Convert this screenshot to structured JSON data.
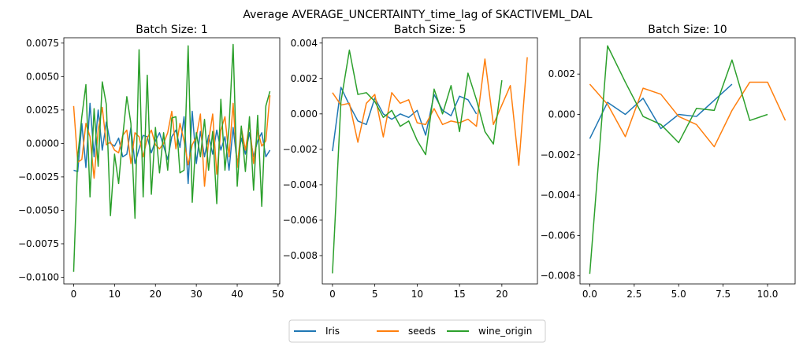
{
  "title": "Average AVERAGE_UNCERTAINTY_time_lag of SKACTIVEML_DAL",
  "legend_entries": [
    "Iris",
    "seeds",
    "wine_origin"
  ],
  "colors": {
    "Iris": "#1f77b4",
    "seeds": "#ff7f0e",
    "wine_origin": "#2ca02c"
  },
  "chart_data": [
    {
      "type": "line",
      "title": "Batch Size: 1",
      "xlim": [
        -2.4,
        50.4
      ],
      "ylim": [
        -0.0105,
        0.0079
      ],
      "xticks": [
        0,
        10,
        20,
        30,
        40,
        50
      ],
      "yticks": [
        -0.01,
        -0.0075,
        -0.005,
        -0.0025,
        0.0,
        0.0025,
        0.005,
        0.0075
      ],
      "ytick_labels": [
        "−0.0100",
        "−0.0075",
        "−0.0050",
        "−0.0025",
        "0.0000",
        "0.0025",
        "0.0050",
        "0.0075"
      ],
      "xtick_labels": [
        "0",
        "10",
        "20",
        "30",
        "40",
        "50"
      ],
      "series": [
        {
          "name": "Iris",
          "values": [
            -0.002,
            -0.0021,
            0.0015,
            -0.0018,
            0.003,
            -0.001,
            0.0025,
            -0.0005,
            0.0016,
            0.0,
            -0.0002,
            0.0004,
            -0.001,
            -0.0008,
            0.0012,
            -0.0015,
            -0.0004,
            0.0006,
            0.0005,
            -0.0007,
            0.0002,
            0.0008,
            -0.0002,
            -0.0012,
            0.0005,
            0.001,
            -0.0003,
            0.002,
            -0.003,
            0.0024,
            -0.0015,
            0.0009,
            -0.001,
            0.0006,
            -0.0008,
            0.001,
            -0.0005,
            0.0005,
            -0.002,
            0.0012,
            -0.0015,
            0.0004,
            -0.0008,
            0.0008,
            -0.001,
            0.0002,
            0.0008,
            -0.001,
            -0.0005
          ]
        },
        {
          "name": "seeds",
          "values": [
            0.0028,
            -0.0014,
            -0.0012,
            0.0015,
            0.0005,
            -0.0026,
            0.001,
            0.0027,
            -0.0001,
            0.0001,
            -0.0005,
            -0.0007,
            0.0006,
            0.001,
            -0.0015,
            0.0008,
            0.0005,
            -0.001,
            0.0004,
            0.001,
            -0.0001,
            -0.0004,
            0.0,
            0.0008,
            0.0024,
            -0.0004,
            0.0015,
            0.0002,
            -0.0016,
            -0.0001,
            0.0005,
            0.0022,
            -0.0032,
            0.0002,
            0.0022,
            -0.0023,
            0.001,
            0.002,
            -0.001,
            0.003,
            -0.0018,
            0.0012,
            -0.0005,
            0.0015,
            -0.0015,
            0.001,
            -0.0002,
            0.0002,
            0.0036
          ]
        },
        {
          "name": "wine_origin",
          "values": [
            -0.0096,
            -0.001,
            0.002,
            0.0044,
            -0.004,
            0.0026,
            -0.0017,
            0.0046,
            0.0029,
            -0.0054,
            -0.0008,
            -0.003,
            0.0005,
            0.0035,
            0.0015,
            -0.0056,
            0.007,
            -0.004,
            0.0051,
            -0.0038,
            0.0012,
            -0.0022,
            0.0008,
            -0.002,
            0.0019,
            0.002,
            -0.0022,
            -0.002,
            0.0073,
            -0.0044,
            0.0008,
            -0.001,
            0.0018,
            -0.002,
            0.0009,
            -0.0045,
            0.0033,
            -0.002,
            0.0012,
            0.0074,
            -0.0032,
            0.0013,
            -0.0021,
            0.002,
            -0.0035,
            0.0021,
            -0.0047,
            0.0028,
            0.0039
          ]
        }
      ]
    },
    {
      "type": "line",
      "title": "Batch Size: 5",
      "xlim": [
        -1.2,
        24.2
      ],
      "ylim": [
        -0.0096,
        0.0043
      ],
      "xticks": [
        0,
        5,
        10,
        15,
        20
      ],
      "yticks": [
        -0.008,
        -0.006,
        -0.004,
        -0.002,
        0.0,
        0.002,
        0.004
      ],
      "ytick_labels": [
        "−0.008",
        "−0.006",
        "−0.004",
        "−0.002",
        "0.000",
        "0.002",
        "0.004"
      ],
      "xtick_labels": [
        "0",
        "5",
        "10",
        "15",
        "20"
      ],
      "series": [
        {
          "name": "Iris",
          "values": [
            -0.0021,
            0.0015,
            0.0005,
            -0.0004,
            -0.0006,
            0.0009,
            0.0,
            -0.0003,
            0.0,
            -0.0002,
            0.0002,
            -0.0012,
            0.0011,
            0.0002,
            -0.0001,
            0.001,
            0.0008,
            0.0
          ]
        },
        {
          "name": "seeds",
          "values": [
            0.0012,
            0.0005,
            0.0006,
            -0.0016,
            0.0006,
            0.0011,
            -0.0013,
            0.0012,
            0.0006,
            0.0008,
            -0.0005,
            -0.0006,
            0.0003,
            -0.0006,
            -0.0004,
            -0.0005,
            -0.0003,
            -0.0007,
            0.0031,
            -0.0006,
            0.0005,
            0.0016,
            -0.0029,
            0.0032
          ]
        },
        {
          "name": "wine_origin",
          "values": [
            -0.009,
            0.0007,
            0.0036,
            0.0011,
            0.0012,
            0.0007,
            -0.0002,
            0.0002,
            -0.0007,
            -0.0004,
            -0.0015,
            -0.0023,
            0.0014,
            0.0,
            0.0016,
            -0.001,
            0.0023,
            0.0008,
            -0.001,
            -0.0017,
            0.0019
          ]
        }
      ]
    },
    {
      "type": "line",
      "title": "Batch Size: 10",
      "xlim": [
        -0.55,
        11.55
      ],
      "ylim": [
        -0.0084,
        0.0038
      ],
      "xticks": [
        0.0,
        2.5,
        5.0,
        7.5,
        10.0
      ],
      "yticks": [
        -0.008,
        -0.006,
        -0.004,
        -0.002,
        0.0,
        0.002
      ],
      "ytick_labels": [
        "−0.008",
        "−0.006",
        "−0.004",
        "−0.002",
        "0.000",
        "0.002"
      ],
      "xtick_labels": [
        "0.0",
        "2.5",
        "5.0",
        "7.5",
        "10.0"
      ],
      "series": [
        {
          "name": "Iris",
          "values": [
            -0.0012,
            0.0006,
            0.0,
            0.0008,
            -0.0007,
            0.0,
            -0.0001,
            0.0007,
            0.0015
          ]
        },
        {
          "name": "seeds",
          "values": [
            0.0015,
            0.0005,
            -0.0011,
            0.0013,
            0.001,
            -0.0001,
            -0.0005,
            -0.0016,
            0.0002,
            0.0016,
            0.0016,
            -0.0003
          ]
        },
        {
          "name": "wine_origin",
          "values": [
            -0.0079,
            0.0034,
            0.0016,
            -0.0001,
            -0.0005,
            -0.0014,
            0.0003,
            0.0002,
            0.0027,
            -0.0003,
            0.0
          ]
        }
      ]
    }
  ]
}
